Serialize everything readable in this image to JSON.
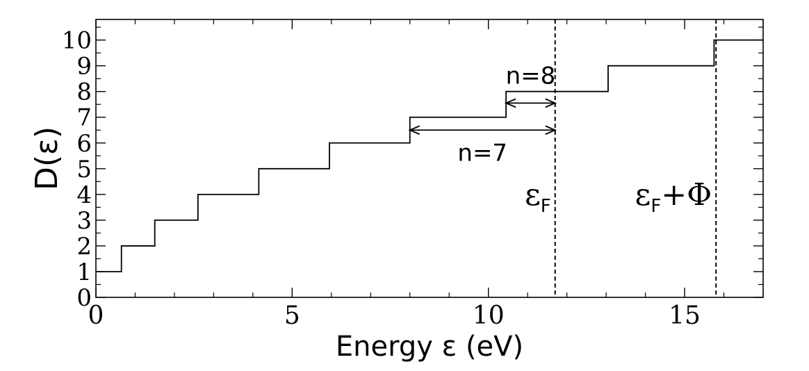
{
  "chart_data": {
    "type": "line",
    "title": "",
    "xlabel": "Energy ε (eV)",
    "ylabel": "D(ε)",
    "xlim": [
      0,
      17
    ],
    "ylim": [
      0,
      10.8
    ],
    "x_ticks": [
      0,
      5,
      10,
      15
    ],
    "x_tick_labels": [
      "0",
      "5",
      "10",
      "15"
    ],
    "x_minor_step": 1,
    "y_ticks": [
      0,
      1,
      2,
      3,
      4,
      5,
      6,
      7,
      8,
      9,
      10
    ],
    "y_tick_labels": [
      "0",
      "1",
      "2",
      "3",
      "4",
      "5",
      "6",
      "7",
      "8",
      "9",
      "10"
    ],
    "series": [
      {
        "style": "step",
        "color": "#000000",
        "steps": [
          {
            "x": 0.0,
            "y": 1
          },
          {
            "x": 0.65,
            "y": 2
          },
          {
            "x": 1.5,
            "y": 3
          },
          {
            "x": 2.6,
            "y": 4
          },
          {
            "x": 4.15,
            "y": 5
          },
          {
            "x": 5.95,
            "y": 6
          },
          {
            "x": 8.0,
            "y": 7
          },
          {
            "x": 10.45,
            "y": 8
          },
          {
            "x": 13.05,
            "y": 9
          },
          {
            "x": 15.75,
            "y": 10
          }
        ],
        "x_end": 17.0
      }
    ],
    "vlines": [
      {
        "x": 11.7,
        "label": "ε",
        "subscript": "F",
        "suffix": "",
        "style": "dashed"
      },
      {
        "x": 15.8,
        "label": "ε",
        "subscript": "F",
        "suffix": "+Φ",
        "style": "dashed"
      }
    ],
    "arrows": [
      {
        "x_from": 10.45,
        "x_to": 11.7,
        "y": 7.55,
        "label": "n=8",
        "label_position": "above"
      },
      {
        "x_from": 8.0,
        "x_to": 11.7,
        "y": 6.5,
        "label": "n=7",
        "label_position": "below"
      }
    ],
    "grid": false,
    "legend": "none"
  }
}
